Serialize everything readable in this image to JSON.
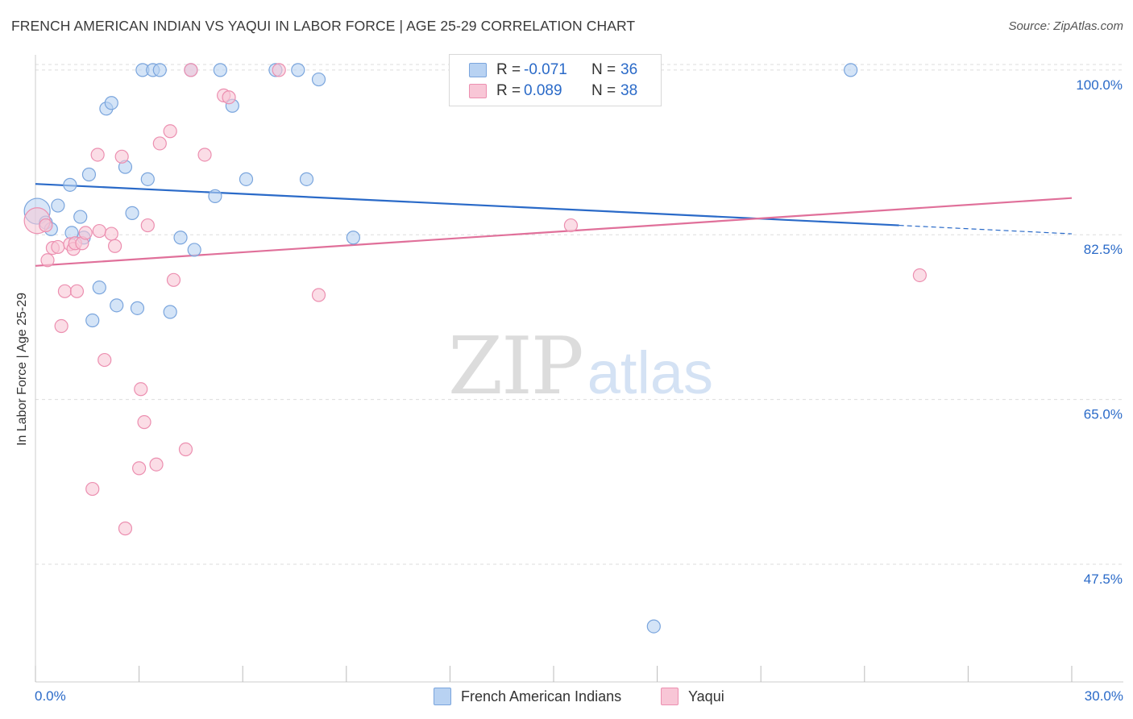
{
  "title": "FRENCH AMERICAN INDIAN VS YAQUI IN LABOR FORCE | AGE 25-29 CORRELATION CHART",
  "source": "Source: ZipAtlas.com",
  "watermark": {
    "zip": "ZIP",
    "atlas": "atlas"
  },
  "stats": [
    {
      "r_label": "R =",
      "r_value": "-0.071",
      "n_label": "N =",
      "n_value": "36"
    },
    {
      "r_label": "R =",
      "r_value": "0.089",
      "n_label": "N =",
      "n_value": "38"
    }
  ],
  "legend": [
    {
      "label": "French American Indians"
    },
    {
      "label": "Yaqui"
    }
  ],
  "colors": {
    "blue_fill": "#b8d2f2",
    "blue_stroke": "#7aa5dd",
    "blue_line": "#2a6ac8",
    "pink_fill": "#f8c6d6",
    "pink_stroke": "#ec8fb0",
    "pink_line": "#e0709a",
    "tick_text": "#2a6ac8",
    "grid": "#dddddd"
  },
  "chart_data": {
    "type": "scatter",
    "title": "FRENCH AMERICAN INDIAN VS YAQUI IN LABOR FORCE | AGE 25-29 CORRELATION CHART",
    "xlabel": "",
    "ylabel": "In Labor Force | Age 25-29",
    "xlim": [
      0,
      30
    ],
    "ylim": [
      35.0,
      102.3
    ],
    "x_ticks": [
      0,
      3,
      6,
      9,
      12,
      15,
      18,
      21,
      24,
      27,
      30
    ],
    "x_tick_labels": [
      {
        "value": 0,
        "label": "0.0%"
      },
      {
        "value": 30,
        "label": "30.0%"
      }
    ],
    "y_ticks": [
      {
        "value": 100.0,
        "label": "100.0%"
      },
      {
        "value": 82.5,
        "label": "82.5%"
      },
      {
        "value": 65.0,
        "label": "65.0%"
      },
      {
        "value": 47.5,
        "label": "47.5%"
      }
    ],
    "grid": true,
    "legend_position": "bottom",
    "series": [
      {
        "name": "French American Indians",
        "r": -0.071,
        "n": 36,
        "trend": {
          "x": [
            0,
            25
          ],
          "y": [
            87.9,
            83.5
          ],
          "dashed_to_x": 30,
          "dashed_to_y": 82.6
        },
        "points": [
          [
            0.05,
            85.0
          ],
          [
            0.3,
            83.8
          ],
          [
            0.45,
            83.1
          ],
          [
            0.65,
            85.6
          ],
          [
            1.0,
            87.8
          ],
          [
            1.05,
            82.7
          ],
          [
            1.3,
            84.4
          ],
          [
            1.4,
            82.2
          ],
          [
            1.55,
            88.9
          ],
          [
            1.65,
            73.4
          ],
          [
            1.85,
            76.9
          ],
          [
            2.05,
            95.9
          ],
          [
            2.2,
            96.5
          ],
          [
            2.35,
            75.0
          ],
          [
            2.6,
            89.7
          ],
          [
            2.8,
            84.8
          ],
          [
            2.95,
            74.7
          ],
          [
            3.1,
            100.0
          ],
          [
            3.25,
            88.4
          ],
          [
            3.4,
            100.0
          ],
          [
            3.6,
            100.0
          ],
          [
            3.9,
            74.3
          ],
          [
            4.2,
            82.2
          ],
          [
            4.5,
            100.0
          ],
          [
            4.6,
            80.9
          ],
          [
            5.2,
            86.6
          ],
          [
            5.35,
            100.0
          ],
          [
            5.7,
            96.2
          ],
          [
            6.1,
            88.4
          ],
          [
            6.95,
            100.0
          ],
          [
            7.6,
            100.0
          ],
          [
            7.85,
            88.4
          ],
          [
            8.2,
            99.0
          ],
          [
            9.2,
            82.2
          ],
          [
            17.9,
            40.9
          ],
          [
            23.6,
            100.0
          ]
        ]
      },
      {
        "name": "Yaqui",
        "r": 0.089,
        "n": 38,
        "trend": {
          "x": [
            0,
            30
          ],
          "y": [
            79.2,
            86.4
          ]
        },
        "points": [
          [
            0.05,
            84.0
          ],
          [
            0.3,
            83.5
          ],
          [
            0.35,
            79.8
          ],
          [
            0.5,
            81.1
          ],
          [
            0.65,
            81.2
          ],
          [
            0.75,
            72.8
          ],
          [
            0.85,
            76.5
          ],
          [
            1.0,
            81.5
          ],
          [
            1.1,
            81.0
          ],
          [
            1.15,
            81.6
          ],
          [
            1.2,
            76.5
          ],
          [
            1.35,
            81.6
          ],
          [
            1.45,
            82.7
          ],
          [
            1.65,
            55.5
          ],
          [
            1.8,
            91.0
          ],
          [
            1.85,
            82.9
          ],
          [
            2.0,
            69.2
          ],
          [
            2.2,
            82.6
          ],
          [
            2.3,
            81.3
          ],
          [
            2.5,
            90.8
          ],
          [
            2.6,
            51.3
          ],
          [
            3.0,
            57.7
          ],
          [
            3.05,
            66.1
          ],
          [
            3.15,
            62.6
          ],
          [
            3.25,
            83.5
          ],
          [
            3.5,
            58.1
          ],
          [
            3.6,
            92.2
          ],
          [
            3.9,
            93.5
          ],
          [
            4.0,
            77.7
          ],
          [
            4.35,
            59.7
          ],
          [
            4.5,
            100.0
          ],
          [
            4.9,
            91.0
          ],
          [
            5.45,
            97.3
          ],
          [
            5.6,
            97.1
          ],
          [
            7.05,
            100.0
          ],
          [
            8.2,
            76.1
          ],
          [
            15.5,
            83.5
          ],
          [
            25.6,
            78.2
          ]
        ]
      }
    ]
  }
}
